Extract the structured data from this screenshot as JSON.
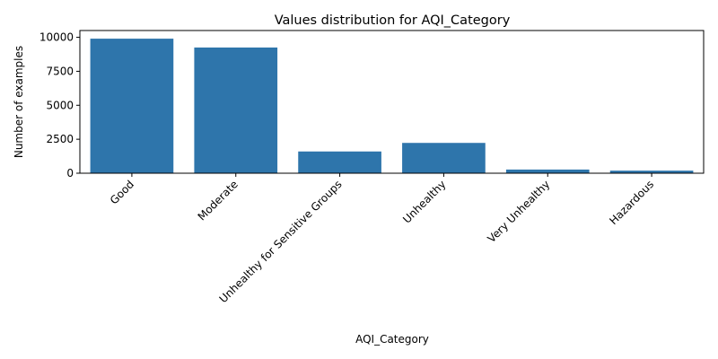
{
  "chart_data": {
    "type": "bar",
    "title": "Values distribution for AQI_Category",
    "xlabel": "AQI_Category",
    "ylabel": "Number of examples",
    "categories": [
      "Good",
      "Moderate",
      "Unhealthy for Sensitive Groups",
      "Unhealthy",
      "Very Unhealthy",
      "Hazardous"
    ],
    "values": [
      9900,
      9250,
      1600,
      2230,
      270,
      190
    ],
    "ylim": [
      0,
      10500
    ],
    "yticks": [
      0,
      2500,
      5000,
      7500,
      10000
    ],
    "ytick_labels": [
      "0",
      "2500",
      "5000",
      "7500",
      "10000"
    ],
    "bar_color": "#2e75ab",
    "grid": false,
    "legend": "none"
  }
}
